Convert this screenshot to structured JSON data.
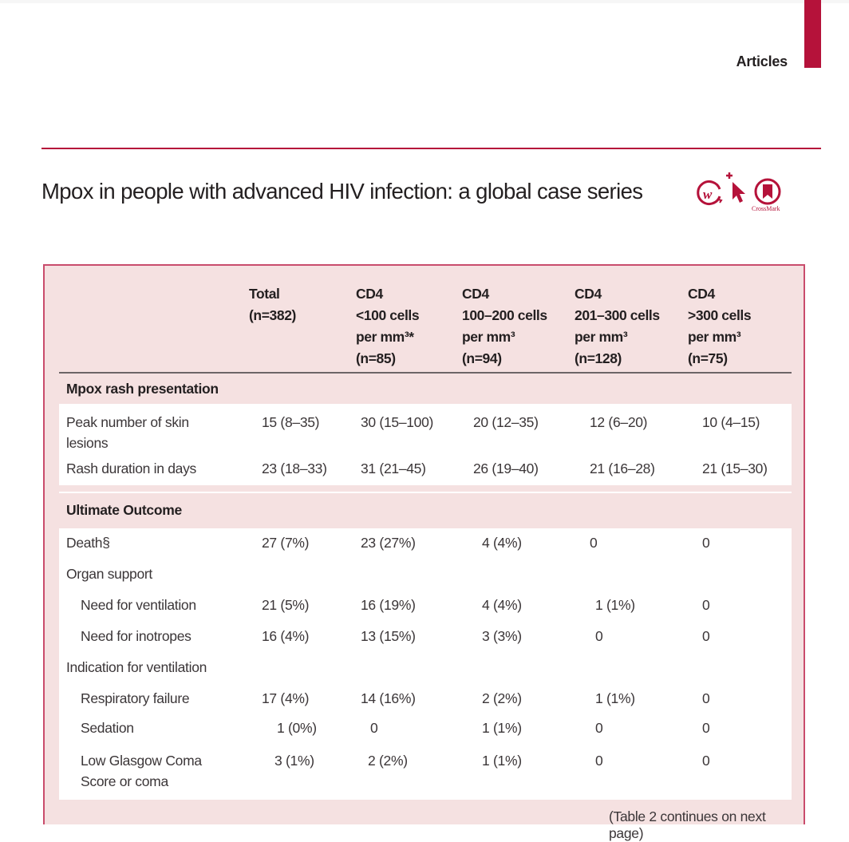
{
  "page": {
    "section_label": "Articles",
    "title": "Mpox in people with advanced HIV infection: a global case series",
    "badges": [
      {
        "icon": "open-access-w-icon"
      },
      {
        "icon": "cursor-plus-icon"
      },
      {
        "icon": "crossmark-icon",
        "label": "CrossMark"
      }
    ],
    "colors": {
      "brand": "#b5123a",
      "table_bg": "#f5e1e1",
      "table_border": "#c94c6c"
    }
  },
  "table": {
    "columns": [
      {
        "line1": "Total",
        "line2": "(n=382)"
      },
      {
        "line1": "CD4",
        "line2": "<100 cells",
        "line3": "per mm³*",
        "line4": "(n=85)"
      },
      {
        "line1": "CD4",
        "line2": "100–200 cells",
        "line3": "per mm³",
        "line4": "(n=94)"
      },
      {
        "line1": "CD4",
        "line2": "201–300 cells",
        "line3": "per mm³",
        "line4": "(n=128)"
      },
      {
        "line1": "CD4",
        "line2": ">300 cells",
        "line3": "per mm³",
        "line4": "(n=75)"
      }
    ],
    "sections": [
      {
        "heading": "Mpox rash presentation",
        "rows": [
          {
            "label": "Peak number of skin",
            "label2": "lesions",
            "values": [
              "15 (8–35)",
              "30 (15–100)",
              "20 (12–35)",
              "12 (6–20)",
              "10 (4–15)"
            ]
          },
          {
            "label": "Rash duration in days",
            "values": [
              "23 (18–33)",
              "31 (21–45)",
              "26 (19–40)",
              "21 (16–28)",
              "21 (15–30)"
            ]
          }
        ]
      },
      {
        "heading": "Ultimate Outcome",
        "rows": [
          {
            "label": "Death§",
            "values": [
              "27 (7%)",
              "23 (27%)",
              "4 (4%)",
              "0",
              "0"
            ]
          },
          {
            "label": "Organ support",
            "values": [
              "",
              "",
              "",
              "",
              ""
            ]
          },
          {
            "label": "Need for ventilation",
            "indent": true,
            "values": [
              "21 (5%)",
              "16 (19%)",
              "4 (4%)",
              "1 (1%)",
              "0"
            ]
          },
          {
            "label": "Need for inotropes",
            "indent": true,
            "values": [
              "16 (4%)",
              "13 (15%)",
              "3 (3%)",
              "0",
              "0"
            ]
          },
          {
            "label": "Indication for ventilation",
            "values": [
              "",
              "",
              "",
              "",
              ""
            ]
          },
          {
            "label": "Respiratory failure",
            "indent": true,
            "values": [
              "17 (4%)",
              "14 (16%)",
              "2 (2%)",
              "1 (1%)",
              "0"
            ]
          },
          {
            "label": "Sedation",
            "indent": true,
            "values": [
              "1 (0%)",
              "0",
              "1 (1%)",
              "0",
              "0"
            ]
          },
          {
            "label": "Low Glasgow Coma",
            "label2": "Score or coma",
            "indent": true,
            "values": [
              "3 (1%)",
              "2 (2%)",
              "1 (1%)",
              "0",
              "0"
            ]
          }
        ]
      }
    ],
    "continues_note": "(Table 2 continues on next page)"
  }
}
